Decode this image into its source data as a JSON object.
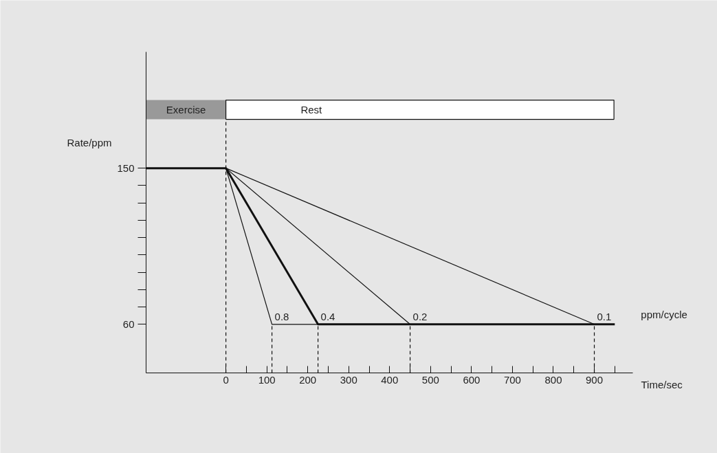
{
  "chart_data": {
    "type": "line",
    "xlabel": "Time/sec",
    "ylabel": "Rate/ppm",
    "xlim": [
      -195,
      994
    ],
    "ylim": [
      32,
      217
    ],
    "xticks": [
      0,
      {
        "value": 50,
        "label": null
      },
      100,
      {
        "value": 150,
        "label": null
      },
      200,
      {
        "value": 250,
        "label": null
      },
      300,
      {
        "value": 350,
        "label": null
      },
      400,
      {
        "value": 450,
        "label": null
      },
      500,
      {
        "value": 550,
        "label": null
      },
      600,
      {
        "value": 650,
        "label": null
      },
      700,
      {
        "value": 750,
        "label": null
      },
      800,
      {
        "value": 850,
        "label": null
      },
      900,
      {
        "value": 950,
        "label": null
      }
    ],
    "yticks": [
      60,
      {
        "value": 70,
        "label": null
      },
      {
        "value": 80,
        "label": null
      },
      {
        "value": 90,
        "label": null
      },
      {
        "value": 100,
        "label": null
      },
      {
        "value": 110,
        "label": null
      },
      {
        "value": 120,
        "label": null
      },
      {
        "value": 130,
        "label": null
      },
      {
        "value": 140,
        "label": null
      },
      150
    ],
    "series": [
      {
        "name": "0.4",
        "color": "#111111",
        "x": [
          -195,
          0,
          225,
          950
        ],
        "values": [
          150,
          150,
          60,
          60
        ]
      },
      {
        "name": "0.8",
        "color": "#111111",
        "x": [
          0,
          112.5,
          225
        ],
        "values": [
          150,
          60,
          60
        ]
      },
      {
        "name": "0.2",
        "color": "#111111",
        "x": [
          0,
          450
        ],
        "values": [
          150,
          60
        ]
      },
      {
        "name": "0.1",
        "color": "#111111",
        "x": [
          0,
          900
        ],
        "values": [
          150,
          60
        ]
      }
    ],
    "bands": [
      {
        "axis": "x",
        "from": -195,
        "to": 0,
        "label": "Exercise",
        "color": "#999999"
      },
      {
        "axis": "x",
        "from": 0,
        "to": 948,
        "label": "Rest",
        "color": "#ffffff"
      }
    ],
    "ref_lines": [
      {
        "axis": "x",
        "value": 0,
        "line_style": "dashed"
      },
      {
        "axis": "x",
        "value": 112.5,
        "line_style": "dashed"
      },
      {
        "axis": "x",
        "value": 225,
        "line_style": "dashed"
      },
      {
        "axis": "x",
        "value": 450,
        "line_style": "dashed"
      },
      {
        "axis": "x",
        "value": 900,
        "line_style": "dashed"
      }
    ],
    "annotations": [
      "ppm/cycle"
    ],
    "legend": false,
    "marker": "none",
    "line_style": "solid"
  }
}
